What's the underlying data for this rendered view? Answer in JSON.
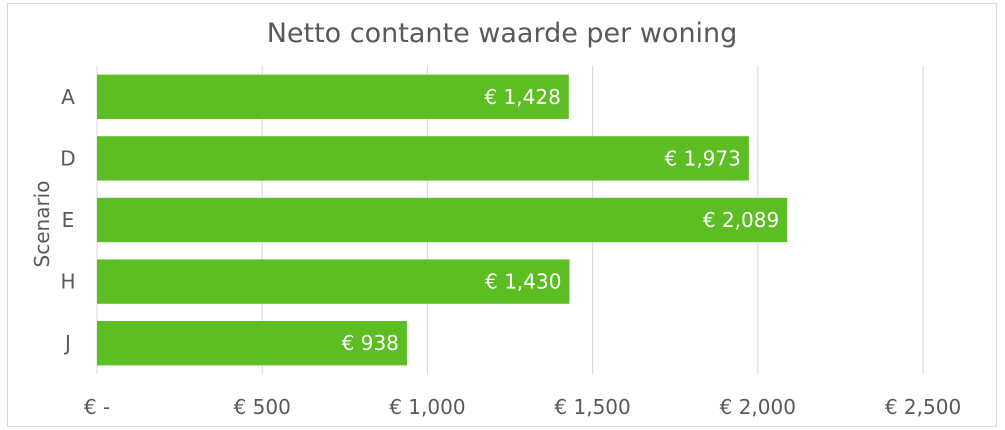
{
  "chart_data": {
    "type": "bar",
    "orientation": "horizontal",
    "title": "Netto contante waarde per woning",
    "xlabel": "",
    "ylabel": "Scenario",
    "categories": [
      "A",
      "D",
      "E",
      "H",
      "J"
    ],
    "values": [
      1428,
      1973,
      2089,
      1430,
      938
    ],
    "data_labels": [
      "€ 1,428",
      "€ 1,973",
      "€ 2,089",
      "€ 1,430",
      "€ 938"
    ],
    "xlim": [
      0,
      2500
    ],
    "x_ticks": [
      0,
      500,
      1000,
      1500,
      2000,
      2500
    ],
    "x_tick_labels": [
      "€ -",
      "€ 500",
      "€ 1,000",
      "€ 1,500",
      "€ 2,000",
      "€ 2,500"
    ],
    "grid": true,
    "legend": "none",
    "bar_color": "#5cbe22",
    "gridline_color": "#d9d9d9",
    "text_color": "#595959"
  }
}
